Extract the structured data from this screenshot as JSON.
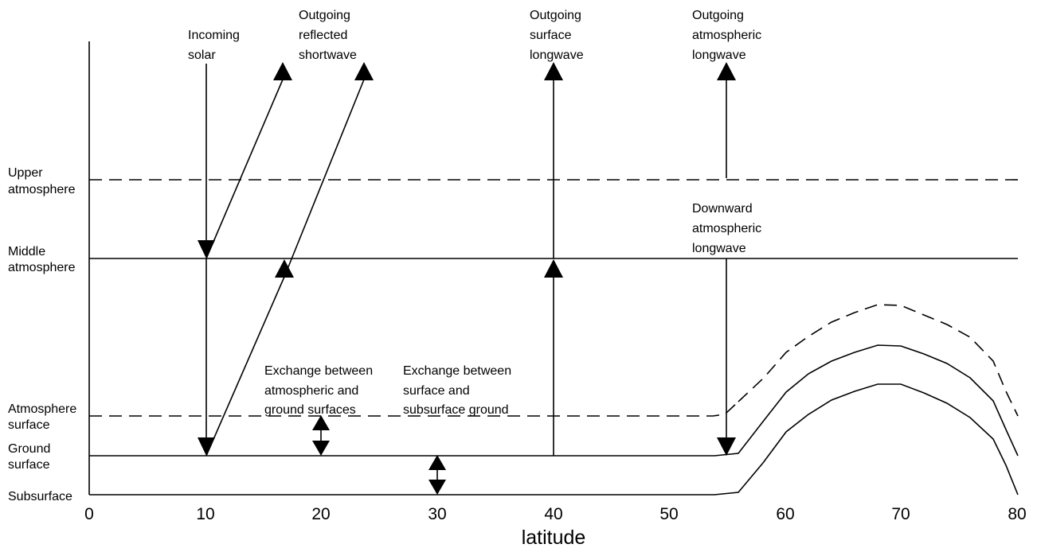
{
  "layer_labels": {
    "upper_atmosphere": [
      "Upper",
      "atmosphere"
    ],
    "middle_atmosphere": [
      "Middle",
      "atmosphere"
    ],
    "atmosphere_surface": [
      "Atmosphere",
      "surface"
    ],
    "ground_surface": [
      "Ground",
      "surface"
    ],
    "subsurface": [
      "Subsurface"
    ]
  },
  "flux_labels": {
    "incoming_solar": [
      "Incoming",
      "solar"
    ],
    "outgoing_reflected_shortwave": [
      "Outgoing",
      "reflected",
      "shortwave"
    ],
    "outgoing_surface_longwave": [
      "Outgoing",
      "surface",
      "longwave"
    ],
    "outgoing_atmospheric_longwave": [
      "Outgoing",
      "atmospheric",
      "longwave"
    ],
    "downward_atmospheric_longwave": [
      "Downward",
      "atmospheric",
      "longwave"
    ],
    "exchange_atmos_ground": [
      "Exchange between",
      "atmospheric and",
      "ground surfaces"
    ],
    "exchange_surface_subsurface": [
      "Exchange between",
      "surface and",
      "subsurface ground"
    ]
  },
  "x_axis": {
    "label": "latitude",
    "ticks": [
      "0",
      "10",
      "20",
      "30",
      "40",
      "50",
      "60",
      "70",
      "80"
    ]
  }
}
